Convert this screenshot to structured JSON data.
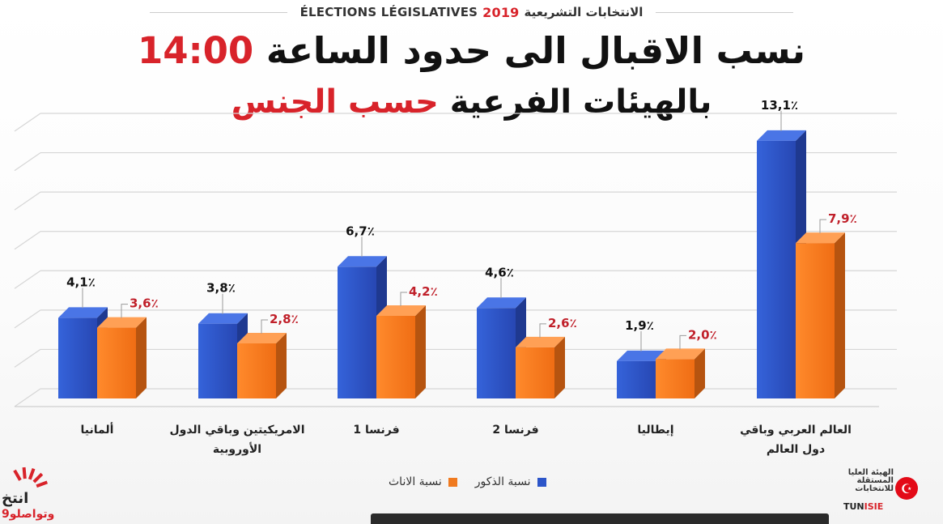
{
  "header": {
    "top_arabic": "الانتخابات التشريعية",
    "top_year": "2019",
    "top_french": "ÉLECTIONS LÉGISLATIVES",
    "title_line1_text": "نسب الاقبال الى حدود الساعة",
    "title_line1_time": "14:00",
    "title_line2_text": "بالهيئات الفرعية",
    "title_line2_highlight": "حسب الجنس"
  },
  "chart_data": {
    "type": "bar",
    "categories": [
      "ألمانيا",
      "الامريكيتين وباقي الدول الأوروبية",
      "فرنسا 1",
      "فرنسا 2",
      "إيطاليا",
      "العالم العربي وباقي دول العالم"
    ],
    "category_lines": [
      [
        "ألمانيا"
      ],
      [
        "الامريكيتين وباقي الدول",
        "الأوروبية"
      ],
      [
        "فرنسا 1"
      ],
      [
        "فرنسا 2"
      ],
      [
        "إيطاليا"
      ],
      [
        "العالم العربي وباقي",
        "دول العالم"
      ]
    ],
    "series": [
      {
        "name": "نسبة الذكور",
        "values": [
          4.1,
          3.8,
          6.7,
          4.6,
          1.9,
          13.1
        ],
        "labels": [
          "4,1٪",
          "3,8٪",
          "6,7٪",
          "4,6٪",
          "1,9٪",
          "13,1٪"
        ],
        "color": "#2c55c9"
      },
      {
        "name": "نسبة الاناث",
        "values": [
          3.6,
          2.8,
          4.2,
          2.6,
          2.0,
          7.9
        ],
        "labels": [
          "3,6٪",
          "2,8٪",
          "4,2٪",
          "2,6٪",
          "2,0٪",
          "7,9٪"
        ],
        "color": "#f07a1f"
      }
    ],
    "ylim": [
      0,
      14
    ],
    "grid": true,
    "legend": "bottom-center",
    "colors": {
      "male_label": "#111111",
      "female_label": "#c0202a"
    }
  },
  "legend": {
    "male": "نسبة الذكور",
    "female": "نسبة الاناث"
  },
  "logos": {
    "left_line1": "انتخ",
    "left_line2": "وتواصلو9",
    "right_arabic": "الهيئة العليا المستقلة للانتخابات",
    "right_isie_a": "TUN",
    "right_isie_b": "ISIE"
  }
}
